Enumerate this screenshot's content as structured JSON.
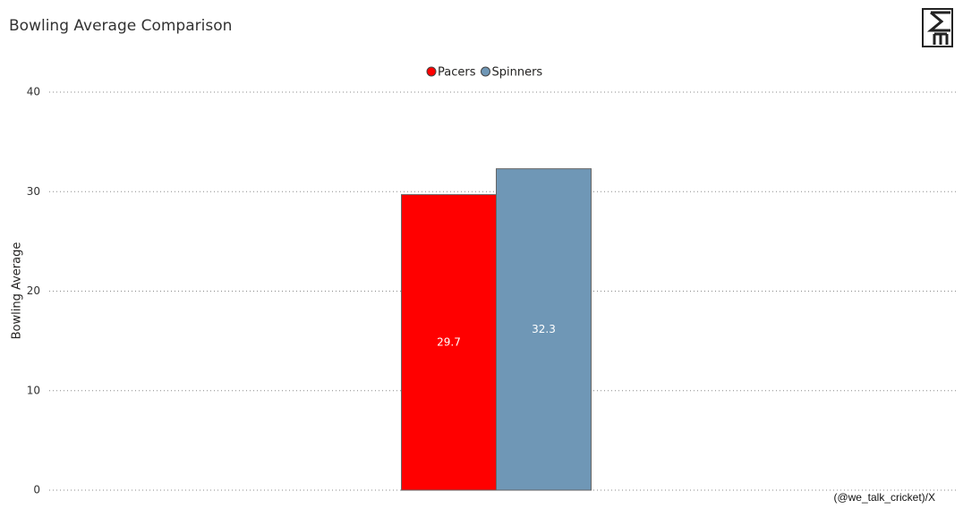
{
  "chart_data": {
    "type": "bar",
    "title": "Bowling Average Comparison",
    "y_label": "Bowling Average",
    "categories": [
      null
    ],
    "series": [
      {
        "name": "Pacers",
        "color": "#ff0000",
        "values": [
          29.7
        ]
      },
      {
        "name": "Spinners",
        "color": "#6f97b6",
        "values": [
          32.3
        ]
      }
    ],
    "ylim": [
      0,
      40
    ],
    "yticks": [
      0,
      10,
      20,
      30,
      40
    ],
    "grid": true,
    "legend": "top",
    "annotation": "(@we_talk_cricket)/X"
  }
}
